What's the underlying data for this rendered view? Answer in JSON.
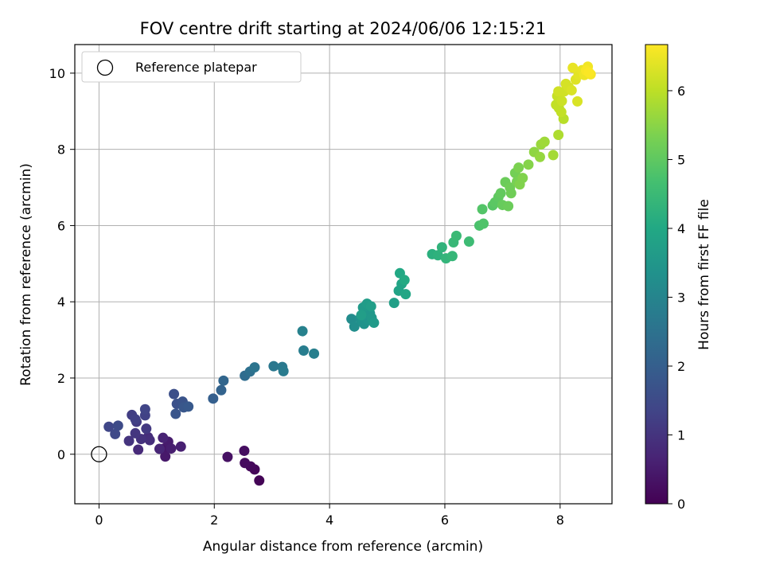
{
  "chart_data": {
    "type": "scatter",
    "title": "FOV centre drift starting at 2024/06/06 12:15:21",
    "xlabel": "Angular distance from reference (arcmin)",
    "ylabel": "Rotation from reference (arcmin)",
    "xlim": [
      -0.42,
      8.9
    ],
    "ylim": [
      -1.3,
      10.75
    ],
    "xticks": [
      0,
      2,
      4,
      6,
      8
    ],
    "yticks": [
      0,
      2,
      4,
      6,
      8,
      10
    ],
    "grid": true,
    "legend": {
      "placement": "upper-left",
      "entries": [
        "Reference platepar"
      ]
    },
    "reference_point": {
      "x": 0,
      "y": 0
    },
    "colorbar": {
      "label": "Hours from first FF file",
      "range": [
        0,
        6.67
      ],
      "ticks": [
        0,
        1,
        2,
        3,
        4,
        5,
        6
      ],
      "colormap": "viridis"
    },
    "points": [
      {
        "x": 2.78,
        "y": -0.69,
        "t": 0.05
      },
      {
        "x": 2.7,
        "y": -0.4,
        "t": 0.1
      },
      {
        "x": 2.63,
        "y": -0.32,
        "t": 0.15
      },
      {
        "x": 2.53,
        "y": -0.23,
        "t": 0.2
      },
      {
        "x": 2.52,
        "y": 0.09,
        "t": 0.25
      },
      {
        "x": 2.23,
        "y": -0.07,
        "t": 0.3
      },
      {
        "x": 1.13,
        "y": 0.15,
        "t": 0.4
      },
      {
        "x": 1.15,
        "y": -0.06,
        "t": 0.45
      },
      {
        "x": 1.2,
        "y": 0.33,
        "t": 0.5
      },
      {
        "x": 1.25,
        "y": 0.15,
        "t": 0.55
      },
      {
        "x": 1.42,
        "y": 0.2,
        "t": 0.6
      },
      {
        "x": 1.11,
        "y": 0.43,
        "t": 0.65
      },
      {
        "x": 1.05,
        "y": 0.14,
        "t": 0.7
      },
      {
        "x": 0.68,
        "y": 0.12,
        "t": 0.8
      },
      {
        "x": 0.85,
        "y": 0.45,
        "t": 0.85
      },
      {
        "x": 0.88,
        "y": 0.37,
        "t": 0.9
      },
      {
        "x": 0.73,
        "y": 0.4,
        "t": 0.95
      },
      {
        "x": 0.52,
        "y": 0.35,
        "t": 1.0
      },
      {
        "x": 0.63,
        "y": 0.55,
        "t": 1.05
      },
      {
        "x": 0.82,
        "y": 0.67,
        "t": 1.1
      },
      {
        "x": 0.65,
        "y": 0.85,
        "t": 1.15
      },
      {
        "x": 0.57,
        "y": 1.03,
        "t": 1.2
      },
      {
        "x": 0.63,
        "y": 0.92,
        "t": 1.25
      },
      {
        "x": 0.8,
        "y": 1.02,
        "t": 1.3
      },
      {
        "x": 0.8,
        "y": 1.18,
        "t": 1.35
      },
      {
        "x": 0.17,
        "y": 0.72,
        "t": 1.4
      },
      {
        "x": 0.28,
        "y": 0.53,
        "t": 1.45
      },
      {
        "x": 0.33,
        "y": 0.75,
        "t": 1.5
      },
      {
        "x": 1.3,
        "y": 1.58,
        "t": 1.6
      },
      {
        "x": 1.35,
        "y": 1.32,
        "t": 1.65
      },
      {
        "x": 1.45,
        "y": 1.38,
        "t": 1.7
      },
      {
        "x": 1.33,
        "y": 1.06,
        "t": 1.75
      },
      {
        "x": 1.47,
        "y": 1.23,
        "t": 1.8
      },
      {
        "x": 1.55,
        "y": 1.25,
        "t": 1.85
      },
      {
        "x": 1.98,
        "y": 1.46,
        "t": 2.0
      },
      {
        "x": 2.12,
        "y": 1.68,
        "t": 2.1
      },
      {
        "x": 2.16,
        "y": 1.93,
        "t": 2.2
      },
      {
        "x": 2.53,
        "y": 2.06,
        "t": 2.35
      },
      {
        "x": 2.62,
        "y": 2.17,
        "t": 2.45
      },
      {
        "x": 2.7,
        "y": 2.28,
        "t": 2.55
      },
      {
        "x": 3.03,
        "y": 2.31,
        "t": 2.65
      },
      {
        "x": 3.18,
        "y": 2.29,
        "t": 2.7
      },
      {
        "x": 3.2,
        "y": 2.18,
        "t": 2.75
      },
      {
        "x": 3.55,
        "y": 2.72,
        "t": 2.8
      },
      {
        "x": 3.73,
        "y": 2.64,
        "t": 2.85
      },
      {
        "x": 3.53,
        "y": 3.23,
        "t": 2.9
      },
      {
        "x": 4.38,
        "y": 3.55,
        "t": 3.2
      },
      {
        "x": 4.43,
        "y": 3.35,
        "t": 3.25
      },
      {
        "x": 4.53,
        "y": 3.56,
        "t": 3.3
      },
      {
        "x": 4.57,
        "y": 3.48,
        "t": 3.35
      },
      {
        "x": 4.6,
        "y": 3.42,
        "t": 3.4
      },
      {
        "x": 4.65,
        "y": 3.54,
        "t": 3.45
      },
      {
        "x": 4.7,
        "y": 3.7,
        "t": 3.5
      },
      {
        "x": 4.73,
        "y": 3.58,
        "t": 3.55
      },
      {
        "x": 4.77,
        "y": 3.45,
        "t": 3.6
      },
      {
        "x": 4.58,
        "y": 3.85,
        "t": 3.6
      },
      {
        "x": 4.65,
        "y": 3.95,
        "t": 3.65
      },
      {
        "x": 4.72,
        "y": 3.88,
        "t": 3.7
      },
      {
        "x": 4.55,
        "y": 3.65,
        "t": 3.7
      },
      {
        "x": 5.12,
        "y": 3.97,
        "t": 3.75
      },
      {
        "x": 5.2,
        "y": 4.29,
        "t": 3.85
      },
      {
        "x": 5.25,
        "y": 4.47,
        "t": 3.9
      },
      {
        "x": 5.32,
        "y": 4.2,
        "t": 3.95
      },
      {
        "x": 5.22,
        "y": 4.75,
        "t": 4.0
      },
      {
        "x": 5.3,
        "y": 4.57,
        "t": 4.05
      },
      {
        "x": 5.78,
        "y": 5.25,
        "t": 4.2
      },
      {
        "x": 5.88,
        "y": 5.22,
        "t": 4.25
      },
      {
        "x": 5.95,
        "y": 5.43,
        "t": 4.3
      },
      {
        "x": 6.02,
        "y": 5.14,
        "t": 4.35
      },
      {
        "x": 6.13,
        "y": 5.2,
        "t": 4.4
      },
      {
        "x": 6.15,
        "y": 5.56,
        "t": 4.45
      },
      {
        "x": 6.2,
        "y": 5.73,
        "t": 4.5
      },
      {
        "x": 6.42,
        "y": 5.58,
        "t": 4.55
      },
      {
        "x": 6.6,
        "y": 6.0,
        "t": 4.75
      },
      {
        "x": 6.67,
        "y": 6.05,
        "t": 4.8
      },
      {
        "x": 6.65,
        "y": 6.43,
        "t": 4.85
      },
      {
        "x": 6.83,
        "y": 6.53,
        "t": 4.9
      },
      {
        "x": 6.87,
        "y": 6.61,
        "t": 4.95
      },
      {
        "x": 6.93,
        "y": 6.75,
        "t": 5.0
      },
      {
        "x": 6.97,
        "y": 6.85,
        "t": 5.05
      },
      {
        "x": 7.0,
        "y": 6.54,
        "t": 5.1
      },
      {
        "x": 7.1,
        "y": 6.51,
        "t": 5.15
      },
      {
        "x": 7.05,
        "y": 7.14,
        "t": 5.15
      },
      {
        "x": 7.13,
        "y": 7.0,
        "t": 5.2
      },
      {
        "x": 7.15,
        "y": 6.85,
        "t": 5.2
      },
      {
        "x": 7.22,
        "y": 7.38,
        "t": 5.25
      },
      {
        "x": 7.25,
        "y": 7.15,
        "t": 5.3
      },
      {
        "x": 7.28,
        "y": 7.52,
        "t": 5.35
      },
      {
        "x": 7.35,
        "y": 7.25,
        "t": 5.4
      },
      {
        "x": 7.3,
        "y": 7.08,
        "t": 5.4
      },
      {
        "x": 7.45,
        "y": 7.6,
        "t": 5.45
      },
      {
        "x": 7.55,
        "y": 7.93,
        "t": 5.55
      },
      {
        "x": 7.65,
        "y": 7.8,
        "t": 5.6
      },
      {
        "x": 7.67,
        "y": 8.13,
        "t": 5.65
      },
      {
        "x": 7.73,
        "y": 8.2,
        "t": 5.7
      },
      {
        "x": 7.88,
        "y": 7.85,
        "t": 5.75
      },
      {
        "x": 7.97,
        "y": 8.38,
        "t": 5.85
      },
      {
        "x": 8.06,
        "y": 8.8,
        "t": 5.95
      },
      {
        "x": 7.98,
        "y": 9.08,
        "t": 6.0
      },
      {
        "x": 8.02,
        "y": 8.98,
        "t": 6.05
      },
      {
        "x": 7.93,
        "y": 9.17,
        "t": 6.05
      },
      {
        "x": 7.95,
        "y": 9.4,
        "t": 6.1
      },
      {
        "x": 8.03,
        "y": 9.27,
        "t": 6.15
      },
      {
        "x": 8.07,
        "y": 9.52,
        "t": 6.2
      },
      {
        "x": 7.97,
        "y": 9.52,
        "t": 6.2
      },
      {
        "x": 8.1,
        "y": 9.72,
        "t": 6.25
      },
      {
        "x": 8.15,
        "y": 9.63,
        "t": 6.25
      },
      {
        "x": 8.2,
        "y": 9.55,
        "t": 6.3
      },
      {
        "x": 8.3,
        "y": 9.26,
        "t": 6.3
      },
      {
        "x": 8.27,
        "y": 9.83,
        "t": 6.35
      },
      {
        "x": 8.32,
        "y": 9.96,
        "t": 6.4
      },
      {
        "x": 8.38,
        "y": 10.08,
        "t": 6.45
      },
      {
        "x": 8.22,
        "y": 10.14,
        "t": 6.45
      },
      {
        "x": 8.42,
        "y": 9.95,
        "t": 6.5
      },
      {
        "x": 8.48,
        "y": 10.17,
        "t": 6.55
      },
      {
        "x": 8.53,
        "y": 9.97,
        "t": 6.6
      },
      {
        "x": 8.45,
        "y": 10.07,
        "t": 6.62
      },
      {
        "x": 8.5,
        "y": 10.02,
        "t": 6.65
      }
    ]
  }
}
